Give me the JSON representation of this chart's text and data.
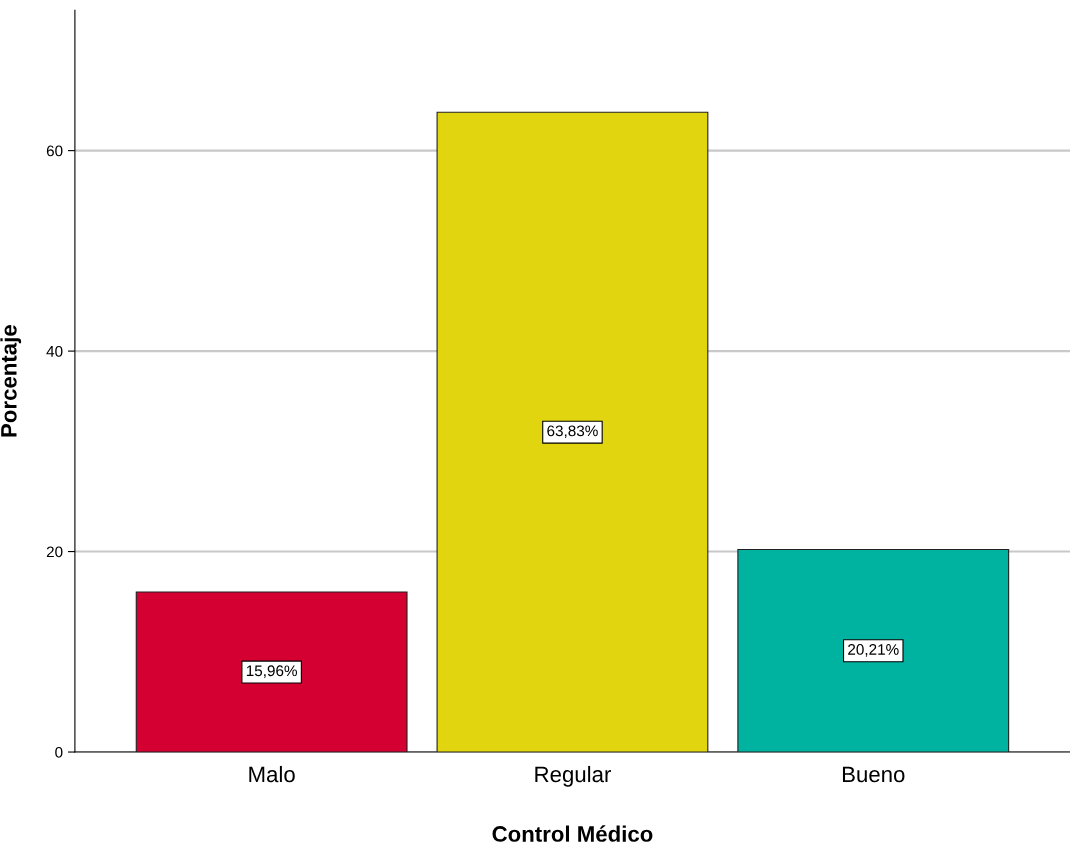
{
  "chart_data": {
    "type": "bar",
    "xlabel": "Control Médico",
    "ylabel": "Porcentaje",
    "categories": [
      "Malo",
      "Regular",
      "Bueno"
    ],
    "values": [
      15.96,
      63.83,
      20.21
    ],
    "colors": [
      "#d50032",
      "#e0d50f",
      "#00b2a0"
    ],
    "value_labels": [
      "15,96%",
      "63,83%",
      "20,21%"
    ],
    "ylim": [
      0,
      74
    ],
    "yticks": [
      0,
      20,
      40,
      60
    ],
    "grid": "y",
    "legend": false
  }
}
